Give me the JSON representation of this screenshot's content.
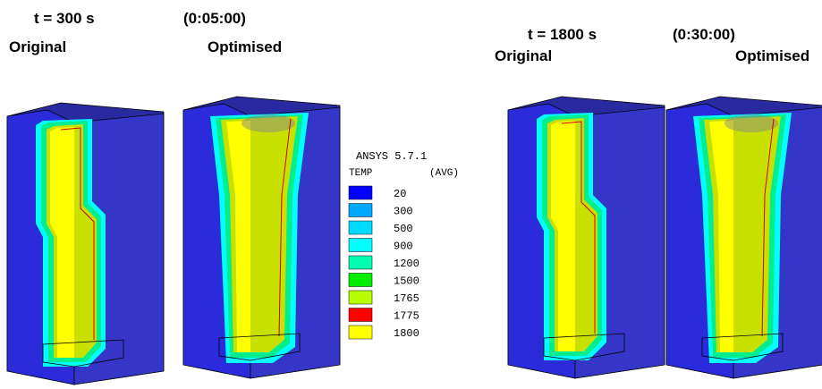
{
  "panels": [
    {
      "time": "t  = 300 s",
      "clock": "(0:05:00)",
      "labels": [
        "Original",
        "Optimised"
      ]
    },
    {
      "time": "t = 1800 s",
      "clock": "(0:30:00)",
      "labels": [
        "Original",
        "Optimised"
      ]
    }
  ],
  "legend": {
    "title": "ANSYS 5.7.1",
    "quantity": "TEMP",
    "mode": "(AVG)",
    "entries": [
      {
        "label": "20",
        "color": "#0000ff"
      },
      {
        "label": "300",
        "color": "#00a8ff"
      },
      {
        "label": "500",
        "color": "#00dcff"
      },
      {
        "label": "900",
        "color": "#00ffff"
      },
      {
        "label": "1200",
        "color": "#00ffb0"
      },
      {
        "label": "1500",
        "color": "#00ee00"
      },
      {
        "label": "1765",
        "color": "#b8ff00"
      },
      {
        "label": "1775",
        "color": "#ff0000"
      },
      {
        "label": "1800",
        "color": "#ffff00"
      }
    ]
  }
}
